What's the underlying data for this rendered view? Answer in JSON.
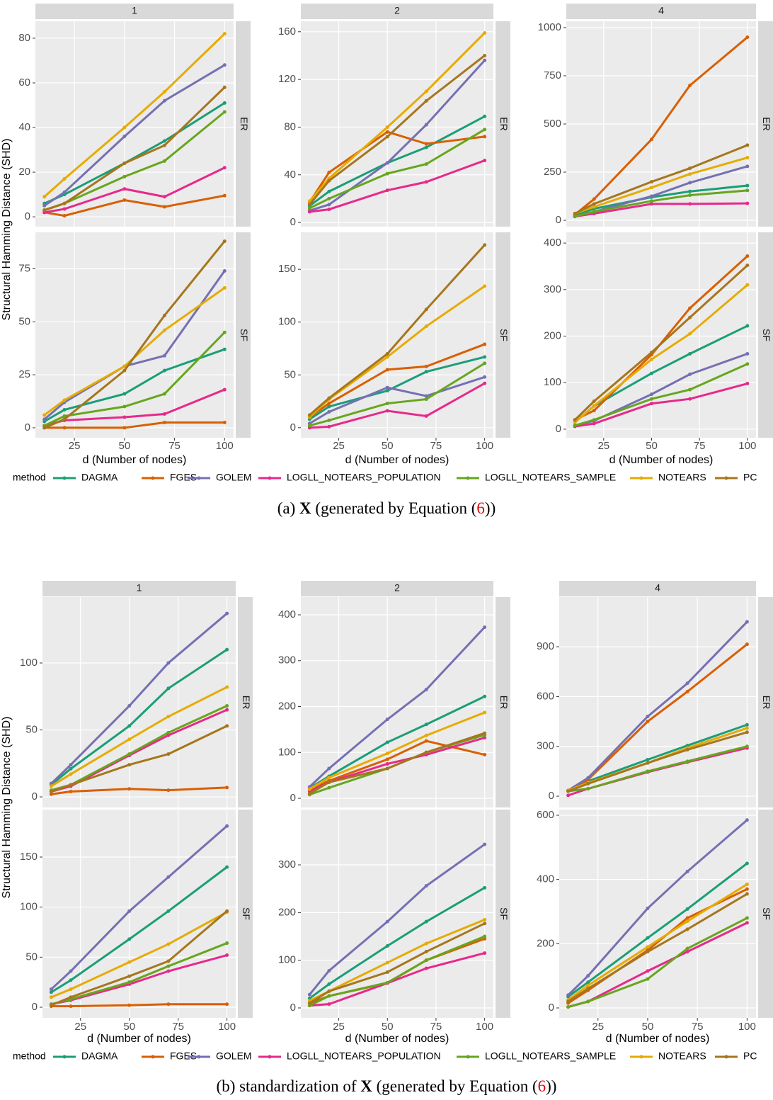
{
  "chart_data": [
    {
      "type": "line",
      "caption": [
        "(a) ",
        "X",
        " (generated by Equation (",
        "6",
        "))"
      ],
      "ylabel": "Structural Hamming Distance (SHD)",
      "xlabel": "d (Number of nodes)",
      "legend_title": "method",
      "columns": [
        "1",
        "2",
        "4"
      ],
      "rows": [
        "ER",
        "SF"
      ],
      "methods": [
        {
          "name": "DAGMA",
          "color": "#1b9e77"
        },
        {
          "name": "FGES",
          "color": "#d95f02"
        },
        {
          "name": "GOLEM",
          "color": "#7570b3"
        },
        {
          "name": "LOGLL_NOTEARS_POPULATION",
          "color": "#e7298a"
        },
        {
          "name": "LOGLL_NOTEARS_SAMPLE",
          "color": "#66a61e"
        },
        {
          "name": "NOTEARS",
          "color": "#e6ab02"
        },
        {
          "name": "PC",
          "color": "#a6761d"
        }
      ],
      "x": [
        10,
        20,
        50,
        70,
        100
      ],
      "xlim": [
        5.5,
        104.5
      ],
      "xticks": [
        25,
        50,
        75,
        100
      ],
      "grid": true,
      "panels": [
        {
          "ylim": [
            -4.4,
            87.6
          ],
          "yticks": [
            0,
            20,
            40,
            60,
            80
          ],
          "values": [
            [
              6,
              10,
              24,
              34,
              51
            ],
            [
              2,
              0.5,
              7.5,
              4.5,
              9.5
            ],
            [
              5,
              11,
              36,
              52,
              68
            ],
            [
              2,
              3.5,
              12.5,
              9,
              22
            ],
            [
              3,
              6,
              18,
              25,
              47
            ],
            [
              9,
              17,
              40,
              56,
              82
            ],
            [
              3,
              6,
              24,
              32,
              58
            ]
          ]
        },
        {
          "ylim": [
            -3.5,
            168.8
          ],
          "yticks": [
            0,
            40,
            80,
            120,
            160
          ],
          "values": [
            [
              14,
              26,
              50,
              63,
              89
            ],
            [
              17,
              42,
              76,
              66,
              72
            ],
            [
              10,
              15,
              50,
              82,
              136
            ],
            [
              9,
              11,
              27,
              34,
              52
            ],
            [
              12,
              20,
              41,
              49,
              78
            ],
            [
              18,
              37,
              80,
              110,
              159
            ],
            [
              15,
              35,
              72,
              102,
              140
            ]
          ]
        },
        {
          "ylim": [
            -33,
            1033
          ],
          "yticks": [
            0,
            250,
            500,
            750,
            1000
          ],
          "values": [
            [
              25,
              60,
              120,
              150,
              180
            ],
            [
              30,
              110,
              420,
              700,
              950
            ],
            [
              20,
              45,
              125,
              195,
              280
            ],
            [
              20,
              35,
              85,
              85,
              88
            ],
            [
              20,
              45,
              100,
              130,
              155
            ],
            [
              35,
              70,
              170,
              240,
              325
            ],
            [
              35,
              85,
              200,
              270,
              390
            ]
          ]
        },
        {
          "ylim": [
            -4.7,
            92.2
          ],
          "yticks": [
            0,
            25,
            50,
            75
          ],
          "values": [
            [
              3,
              8.5,
              16,
              27,
              37
            ],
            [
              0,
              0,
              0,
              2.5,
              2.5
            ],
            [
              4,
              12,
              29,
              34,
              74
            ],
            [
              1,
              3.5,
              5,
              6.5,
              18
            ],
            [
              1,
              5.5,
              10,
              16,
              45
            ],
            [
              6,
              13,
              29,
              46,
              66
            ],
            [
              0,
              4,
              27,
              53,
              88
            ]
          ]
        },
        {
          "ylim": [
            -9.5,
            185
          ],
          "yticks": [
            0,
            50,
            100,
            150
          ],
          "values": [
            [
              8,
              20,
              35,
              53,
              67
            ],
            [
              10,
              23,
              55,
              58,
              79
            ],
            [
              4,
              15,
              38,
              30,
              48
            ],
            [
              0,
              1,
              16,
              11,
              42
            ],
            [
              2,
              7,
              23,
              27,
              61
            ],
            [
              10,
              27,
              67,
              96,
              134
            ],
            [
              12,
              28,
              70,
              112,
              173
            ]
          ]
        },
        {
          "ylim": [
            -18.4,
            423
          ],
          "yticks": [
            0,
            100,
            200,
            300,
            400
          ],
          "values": [
            [
              15,
              50,
              120,
              162,
              222
            ],
            [
              20,
              40,
              160,
              260,
              372
            ],
            [
              8,
              18,
              75,
              118,
              162
            ],
            [
              6,
              12,
              55,
              65,
              98
            ],
            [
              8,
              20,
              65,
              85,
              140
            ],
            [
              15,
              50,
              150,
              205,
              310
            ],
            [
              20,
              60,
              165,
              240,
              352
            ]
          ]
        }
      ]
    },
    {
      "type": "line",
      "caption": [
        "(b) standardization of ",
        "X",
        " (generated by Equation (",
        "6",
        "))"
      ],
      "ylabel": "Structural Hamming Distance (SHD)",
      "xlabel": "d (Number of nodes)",
      "legend_title": "method",
      "columns": [
        "1",
        "2",
        "4"
      ],
      "rows": [
        "ER",
        "SF"
      ],
      "methods": [
        {
          "name": "DAGMA",
          "color": "#1b9e77"
        },
        {
          "name": "FGES",
          "color": "#d95f02"
        },
        {
          "name": "GOLEM",
          "color": "#7570b3"
        },
        {
          "name": "LOGLL_NOTEARS_POPULATION",
          "color": "#e7298a"
        },
        {
          "name": "LOGLL_NOTEARS_SAMPLE",
          "color": "#66a61e"
        },
        {
          "name": "NOTEARS",
          "color": "#e6ab02"
        },
        {
          "name": "PC",
          "color": "#a6761d"
        }
      ],
      "x": [
        10,
        20,
        50,
        70,
        100
      ],
      "xlim": [
        5.5,
        104.5
      ],
      "xticks": [
        25,
        50,
        75,
        100
      ],
      "grid": true,
      "panels": [
        {
          "ylim": [
            -7.9,
            149.2
          ],
          "yticks": [
            0,
            50,
            100
          ],
          "values": [
            [
              9,
              21,
              53,
              81,
              110
            ],
            [
              2,
              4,
              6,
              5,
              7
            ],
            [
              10,
              24,
              68,
              100,
              137
            ],
            [
              4,
              8,
              31,
              46,
              65
            ],
            [
              5,
              9,
              32,
              48,
              68
            ],
            [
              8,
              17,
              43,
              60,
              82
            ],
            [
              4,
              9,
              24,
              32,
              53
            ]
          ]
        },
        {
          "ylim": [
            -20,
            438.6
          ],
          "yticks": [
            0,
            100,
            200,
            300,
            400
          ],
          "values": [
            [
              22,
              48,
              122,
              161,
              222
            ],
            [
              20,
              38,
              85,
              125,
              95
            ],
            [
              25,
              65,
              172,
              237,
              373
            ],
            [
              15,
              35,
              75,
              95,
              132
            ],
            [
              8,
              23,
              65,
              100,
              138
            ],
            [
              20,
              45,
              98,
              137,
              187
            ],
            [
              10,
              35,
              65,
              100,
              142
            ]
          ]
        },
        {
          "ylim": [
            -68,
            1199
          ],
          "yticks": [
            0,
            300,
            600,
            900
          ],
          "values": [
            [
              35,
              90,
              220,
              305,
              430
            ],
            [
              30,
              100,
              450,
              630,
              915
            ],
            [
              35,
              110,
              480,
              680,
              1050
            ],
            [
              5,
              45,
              145,
              205,
              290
            ],
            [
              30,
              45,
              150,
              210,
              300
            ],
            [
              35,
              80,
              200,
              290,
              410
            ],
            [
              30,
              75,
              200,
              280,
              385
            ]
          ]
        },
        {
          "ylim": [
            -10.6,
            197.4
          ],
          "yticks": [
            0,
            50,
            100,
            150
          ],
          "values": [
            [
              15,
              27,
              68,
              96,
              140
            ],
            [
              1,
              1,
              2,
              3,
              3
            ],
            [
              18,
              36,
              96,
              130,
              181
            ],
            [
              3,
              7,
              23,
              36,
              52
            ],
            [
              3,
              8,
              25,
              41,
              64
            ],
            [
              10,
              18,
              45,
              63,
              95
            ],
            [
              2,
              10,
              31,
              46,
              96
            ]
          ]
        },
        {
          "ylim": [
            -20.8,
            415.9
          ],
          "yticks": [
            0,
            100,
            200,
            300
          ],
          "values": [
            [
              20,
              50,
              130,
              181,
              252
            ],
            [
              10,
              25,
              52,
              100,
              145
            ],
            [
              28,
              78,
              181,
              256,
              343
            ],
            [
              5,
              8,
              52,
              83,
              115
            ],
            [
              5,
              25,
              53,
              100,
              150
            ],
            [
              15,
              35,
              95,
              135,
              185
            ],
            [
              10,
              35,
              75,
              118,
              177
            ]
          ]
        },
        {
          "ylim": [
            -30.9,
            617.6
          ],
          "yticks": [
            0,
            200,
            400,
            600
          ],
          "values": [
            [
              35,
              80,
              218,
              308,
              450
            ],
            [
              15,
              55,
              180,
              280,
              370
            ],
            [
              40,
              100,
              310,
              425,
              585
            ],
            [
              3,
              20,
              115,
              175,
              265
            ],
            [
              3,
              20,
              90,
              185,
              280
            ],
            [
              25,
              70,
              190,
              270,
              385
            ],
            [
              20,
              60,
              175,
              245,
              355
            ]
          ]
        }
      ]
    }
  ]
}
